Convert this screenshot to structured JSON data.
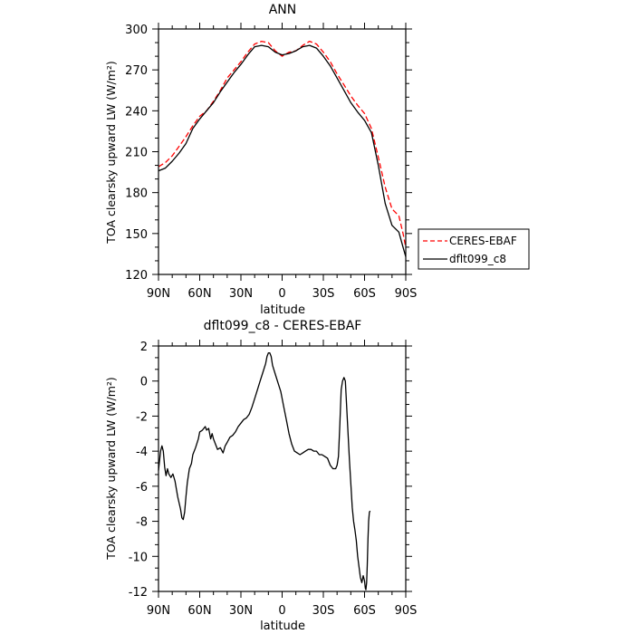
{
  "chart_data": [
    {
      "type": "line",
      "title": "ANN",
      "xlabel": "latitude",
      "ylabel": "TOA clearsky upward LW (W/m²)",
      "xlim": [
        90,
        -90
      ],
      "ylim": [
        120,
        300
      ],
      "yticks": [
        120,
        150,
        180,
        210,
        240,
        270,
        300
      ],
      "xticks": [
        90,
        60,
        30,
        0,
        -30,
        -60,
        -90
      ],
      "xticklabels": [
        "90N",
        "60N",
        "30N",
        "0",
        "30S",
        "60S",
        "90S"
      ],
      "legend": {
        "placement": "right",
        "entries": [
          "CERES-EBAF",
          "dflt099_c8"
        ]
      },
      "series": [
        {
          "name": "CERES-EBAF",
          "color": "#ff0000",
          "dash": "dashed",
          "points": [
            [
              90,
              199
            ],
            [
              85,
              202
            ],
            [
              80,
              207
            ],
            [
              75,
              214
            ],
            [
              70,
              221
            ],
            [
              65,
              229
            ],
            [
              60,
              236
            ],
            [
              55,
              240
            ],
            [
              50,
              247
            ],
            [
              45,
              255
            ],
            [
              40,
              264
            ],
            [
              35,
              270
            ],
            [
              30,
              276
            ],
            [
              25,
              283
            ],
            [
              20,
              289
            ],
            [
              15,
              291
            ],
            [
              10,
              290
            ],
            [
              5,
              284
            ],
            [
              0,
              280
            ],
            [
              -5,
              283
            ],
            [
              -10,
              284
            ],
            [
              -15,
              288
            ],
            [
              -20,
              291
            ],
            [
              -25,
              289
            ],
            [
              -30,
              283
            ],
            [
              -35,
              276
            ],
            [
              -40,
              267
            ],
            [
              -45,
              259
            ],
            [
              -50,
              251
            ],
            [
              -55,
              244
            ],
            [
              -60,
              238
            ],
            [
              -65,
              227
            ],
            [
              -70,
              206
            ],
            [
              -75,
              184
            ],
            [
              -80,
              168
            ],
            [
              -85,
              163
            ],
            [
              -88,
              150
            ],
            [
              -90,
              140
            ]
          ]
        },
        {
          "name": "dflt099_c8",
          "color": "#000000",
          "dash": "solid",
          "points": [
            [
              90,
              196
            ],
            [
              85,
              198
            ],
            [
              80,
              203
            ],
            [
              75,
              209
            ],
            [
              70,
              216
            ],
            [
              65,
              227
            ],
            [
              60,
              234
            ],
            [
              55,
              240
            ],
            [
              50,
              246
            ],
            [
              45,
              254
            ],
            [
              40,
              261
            ],
            [
              35,
              268
            ],
            [
              30,
              274
            ],
            [
              25,
              281
            ],
            [
              20,
              287
            ],
            [
              15,
              288
            ],
            [
              10,
              287
            ],
            [
              5,
              283
            ],
            [
              0,
              281
            ],
            [
              -5,
              282
            ],
            [
              -10,
              284
            ],
            [
              -15,
              287
            ],
            [
              -20,
              288
            ],
            [
              -25,
              286
            ],
            [
              -30,
              280
            ],
            [
              -35,
              273
            ],
            [
              -40,
              264
            ],
            [
              -45,
              255
            ],
            [
              -50,
              246
            ],
            [
              -55,
              239
            ],
            [
              -60,
              233
            ],
            [
              -65,
              224
            ],
            [
              -70,
              200
            ],
            [
              -75,
              172
            ],
            [
              -80,
              156
            ],
            [
              -85,
              151
            ],
            [
              -88,
              140
            ],
            [
              -90,
              133
            ]
          ]
        }
      ]
    },
    {
      "type": "line",
      "title": "dflt099_c8 - CERES-EBAF",
      "xlabel": "latitude",
      "ylabel": "TOA clearsky upward LW (W/m²)",
      "xlim": [
        90,
        -90
      ],
      "ylim": [
        -12,
        2
      ],
      "yticks": [
        -12,
        -10,
        -8,
        -6,
        -4,
        -2,
        0,
        2
      ],
      "xticks": [
        90,
        60,
        30,
        0,
        -30,
        -60,
        -90
      ],
      "xticklabels": [
        "90N",
        "60N",
        "30N",
        "0",
        "30S",
        "60S",
        "90S"
      ],
      "series": [
        {
          "color": "#000000",
          "dash": "solid",
          "points": [
            [
              90,
              -5.1
            ],
            [
              88.5,
              -4.0
            ],
            [
              87.5,
              -3.7
            ],
            [
              86.5,
              -4.0
            ],
            [
              85.5,
              -4.9
            ],
            [
              84.5,
              -5.4
            ],
            [
              83.5,
              -5.0
            ],
            [
              82.5,
              -5.3
            ],
            [
              81,
              -5.5
            ],
            [
              79.5,
              -5.3
            ],
            [
              78,
              -5.7
            ],
            [
              76,
              -6.6
            ],
            [
              74,
              -7.3
            ],
            [
              73,
              -7.8
            ],
            [
              72,
              -7.9
            ],
            [
              71,
              -7.5
            ],
            [
              70,
              -6.6
            ],
            [
              69,
              -5.8
            ],
            [
              67.5,
              -5.0
            ],
            [
              66,
              -4.7
            ],
            [
              65,
              -4.2
            ],
            [
              63,
              -3.8
            ],
            [
              61,
              -3.3
            ],
            [
              60,
              -2.9
            ],
            [
              58,
              -2.8
            ],
            [
              56,
              -2.6
            ],
            [
              55,
              -2.8
            ],
            [
              53.5,
              -2.7
            ],
            [
              52,
              -3.3
            ],
            [
              51,
              -3.0
            ],
            [
              50,
              -3.3
            ],
            [
              48.5,
              -3.6
            ],
            [
              47,
              -3.9
            ],
            [
              45,
              -3.8
            ],
            [
              43,
              -4.1
            ],
            [
              41.5,
              -3.7
            ],
            [
              40,
              -3.5
            ],
            [
              38,
              -3.2
            ],
            [
              36,
              -3.1
            ],
            [
              34,
              -2.9
            ],
            [
              32,
              -2.6
            ],
            [
              30,
              -2.4
            ],
            [
              28,
              -2.2
            ],
            [
              26,
              -2.1
            ],
            [
              24,
              -1.9
            ],
            [
              22,
              -1.5
            ],
            [
              20,
              -1.0
            ],
            [
              18,
              -0.5
            ],
            [
              16,
              0.0
            ],
            [
              14,
              0.5
            ],
            [
              12,
              1.0
            ],
            [
              11,
              1.4
            ],
            [
              10,
              1.6
            ],
            [
              9,
              1.6
            ],
            [
              8,
              1.4
            ],
            [
              7,
              0.9
            ],
            [
              5,
              0.4
            ],
            [
              3,
              -0.1
            ],
            [
              1,
              -0.6
            ],
            [
              -1,
              -1.4
            ],
            [
              -3,
              -2.2
            ],
            [
              -5,
              -3.0
            ],
            [
              -7,
              -3.6
            ],
            [
              -9,
              -4.0
            ],
            [
              -11,
              -4.1
            ],
            [
              -13,
              -4.2
            ],
            [
              -15,
              -4.1
            ],
            [
              -17,
              -4.0
            ],
            [
              -19,
              -3.9
            ],
            [
              -21,
              -3.9
            ],
            [
              -23,
              -4.0
            ],
            [
              -25,
              -4.0
            ],
            [
              -27,
              -4.2
            ],
            [
              -29,
              -4.2
            ],
            [
              -31,
              -4.3
            ],
            [
              -33,
              -4.4
            ],
            [
              -35,
              -4.8
            ],
            [
              -37,
              -5.0
            ],
            [
              -39,
              -5.0
            ],
            [
              -40,
              -4.8
            ],
            [
              -41,
              -4.3
            ],
            [
              -42,
              -2.5
            ],
            [
              -43,
              -0.5
            ],
            [
              -44,
              0.0
            ],
            [
              -45,
              0.2
            ],
            [
              -46,
              0.0
            ],
            [
              -47,
              -1.5
            ],
            [
              -48,
              -3.0
            ],
            [
              -49,
              -4.5
            ],
            [
              -50,
              -5.8
            ],
            [
              -51,
              -7.2
            ],
            [
              -52,
              -8.0
            ],
            [
              -53,
              -8.5
            ],
            [
              -54,
              -9.1
            ],
            [
              -55,
              -10.0
            ],
            [
              -56,
              -10.6
            ],
            [
              -57,
              -11.2
            ],
            [
              -58,
              -11.5
            ],
            [
              -59,
              -11.1
            ],
            [
              -60,
              -11.4
            ],
            [
              -60.5,
              -11.8
            ],
            [
              -61,
              -11.9
            ],
            [
              -61.5,
              -11.5
            ],
            [
              -62,
              -10.5
            ],
            [
              -62.5,
              -9.0
            ],
            [
              -63,
              -8.0
            ],
            [
              -63.5,
              -7.5
            ],
            [
              -64,
              -7.4
            ]
          ]
        }
      ]
    }
  ],
  "legend_line_labels": [
    "CERES-EBAF",
    "dflt099_c8"
  ]
}
